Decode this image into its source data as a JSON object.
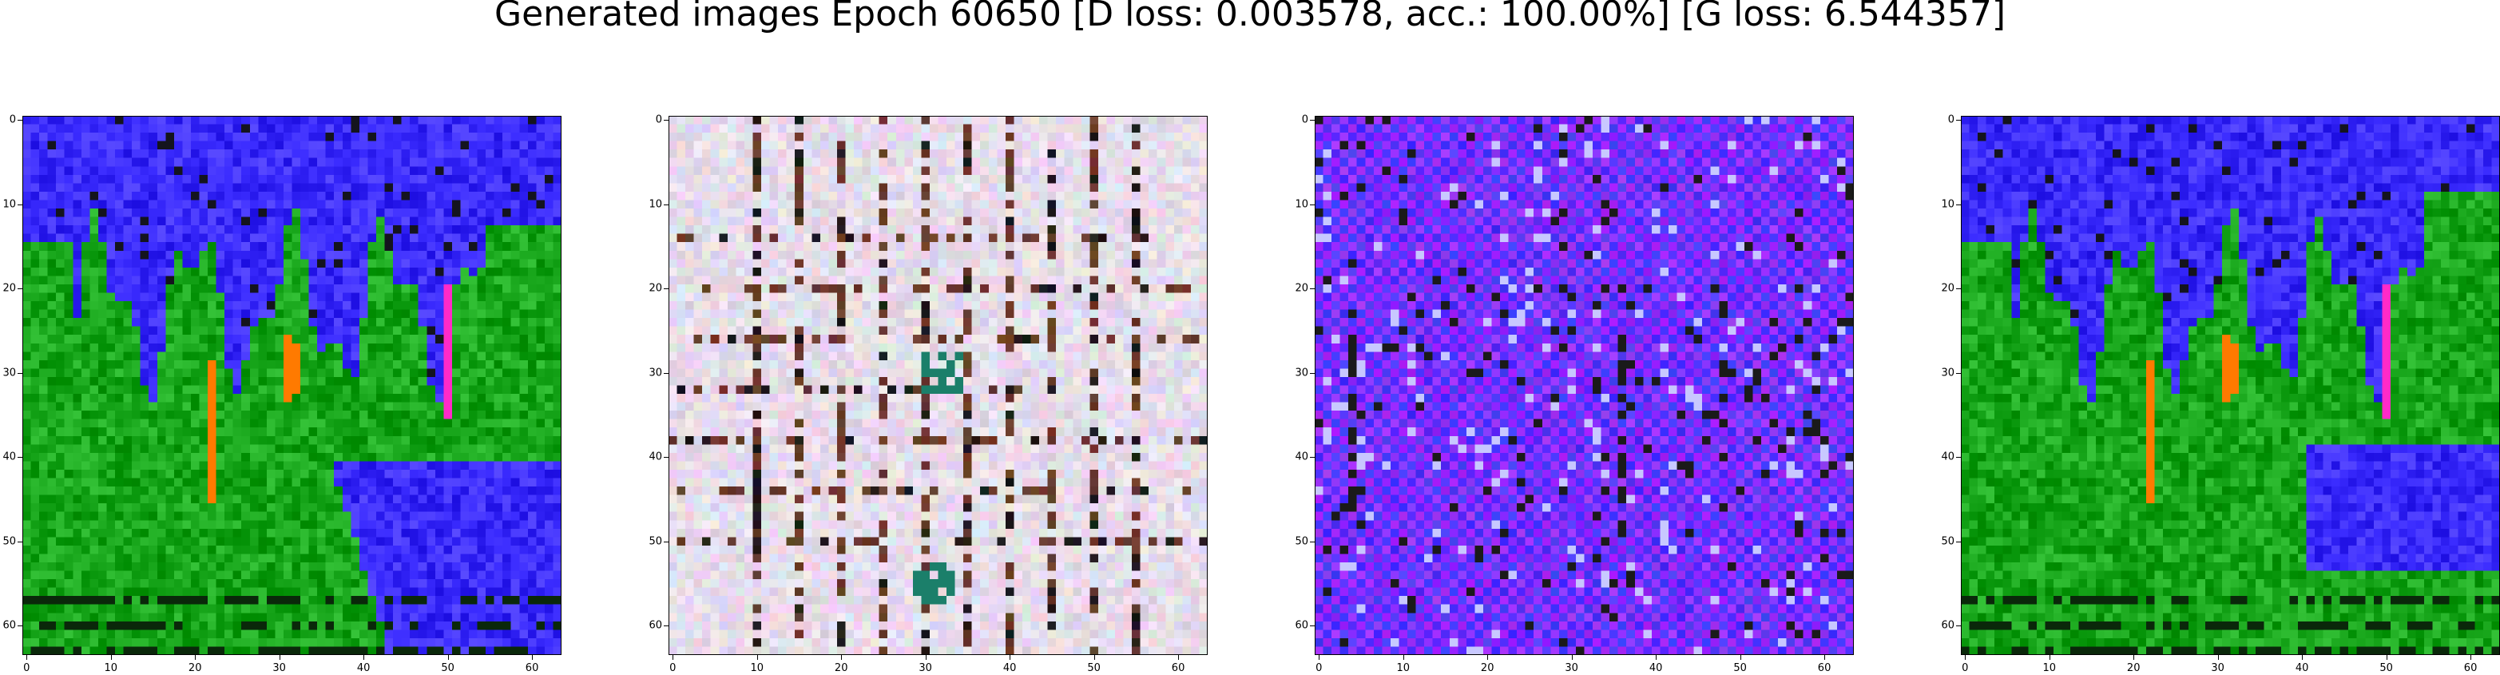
{
  "figure": {
    "title": "Generated images Epoch 60650 [D loss: 0.003578, acc.: 100.00%] [G loss: 6.544357]"
  },
  "axes": {
    "x_ticks": [
      "0",
      "10",
      "20",
      "30",
      "40",
      "50",
      "60"
    ],
    "y_ticks": [
      "0",
      "10",
      "20",
      "30",
      "40",
      "50",
      "60"
    ],
    "extent": [
      0,
      64
    ]
  },
  "panels": [
    {
      "id": "generated-image-1",
      "palette": [
        "#3b2cff",
        "#17a51a",
        "#ff7a00",
        "#ff2ac8"
      ]
    },
    {
      "id": "generated-image-2",
      "palette": [
        "#e6dcea",
        "#6a3a2a",
        "#1a1a1a",
        "#1b7f6a"
      ]
    },
    {
      "id": "generated-image-3",
      "palette": [
        "#4a35ff",
        "#9b2cff",
        "#1a1a1a",
        "#c8c8ff"
      ]
    },
    {
      "id": "generated-image-4",
      "palette": [
        "#3b2cff",
        "#17a51a",
        "#ff7a00",
        "#ff2ac8"
      ]
    }
  ]
}
